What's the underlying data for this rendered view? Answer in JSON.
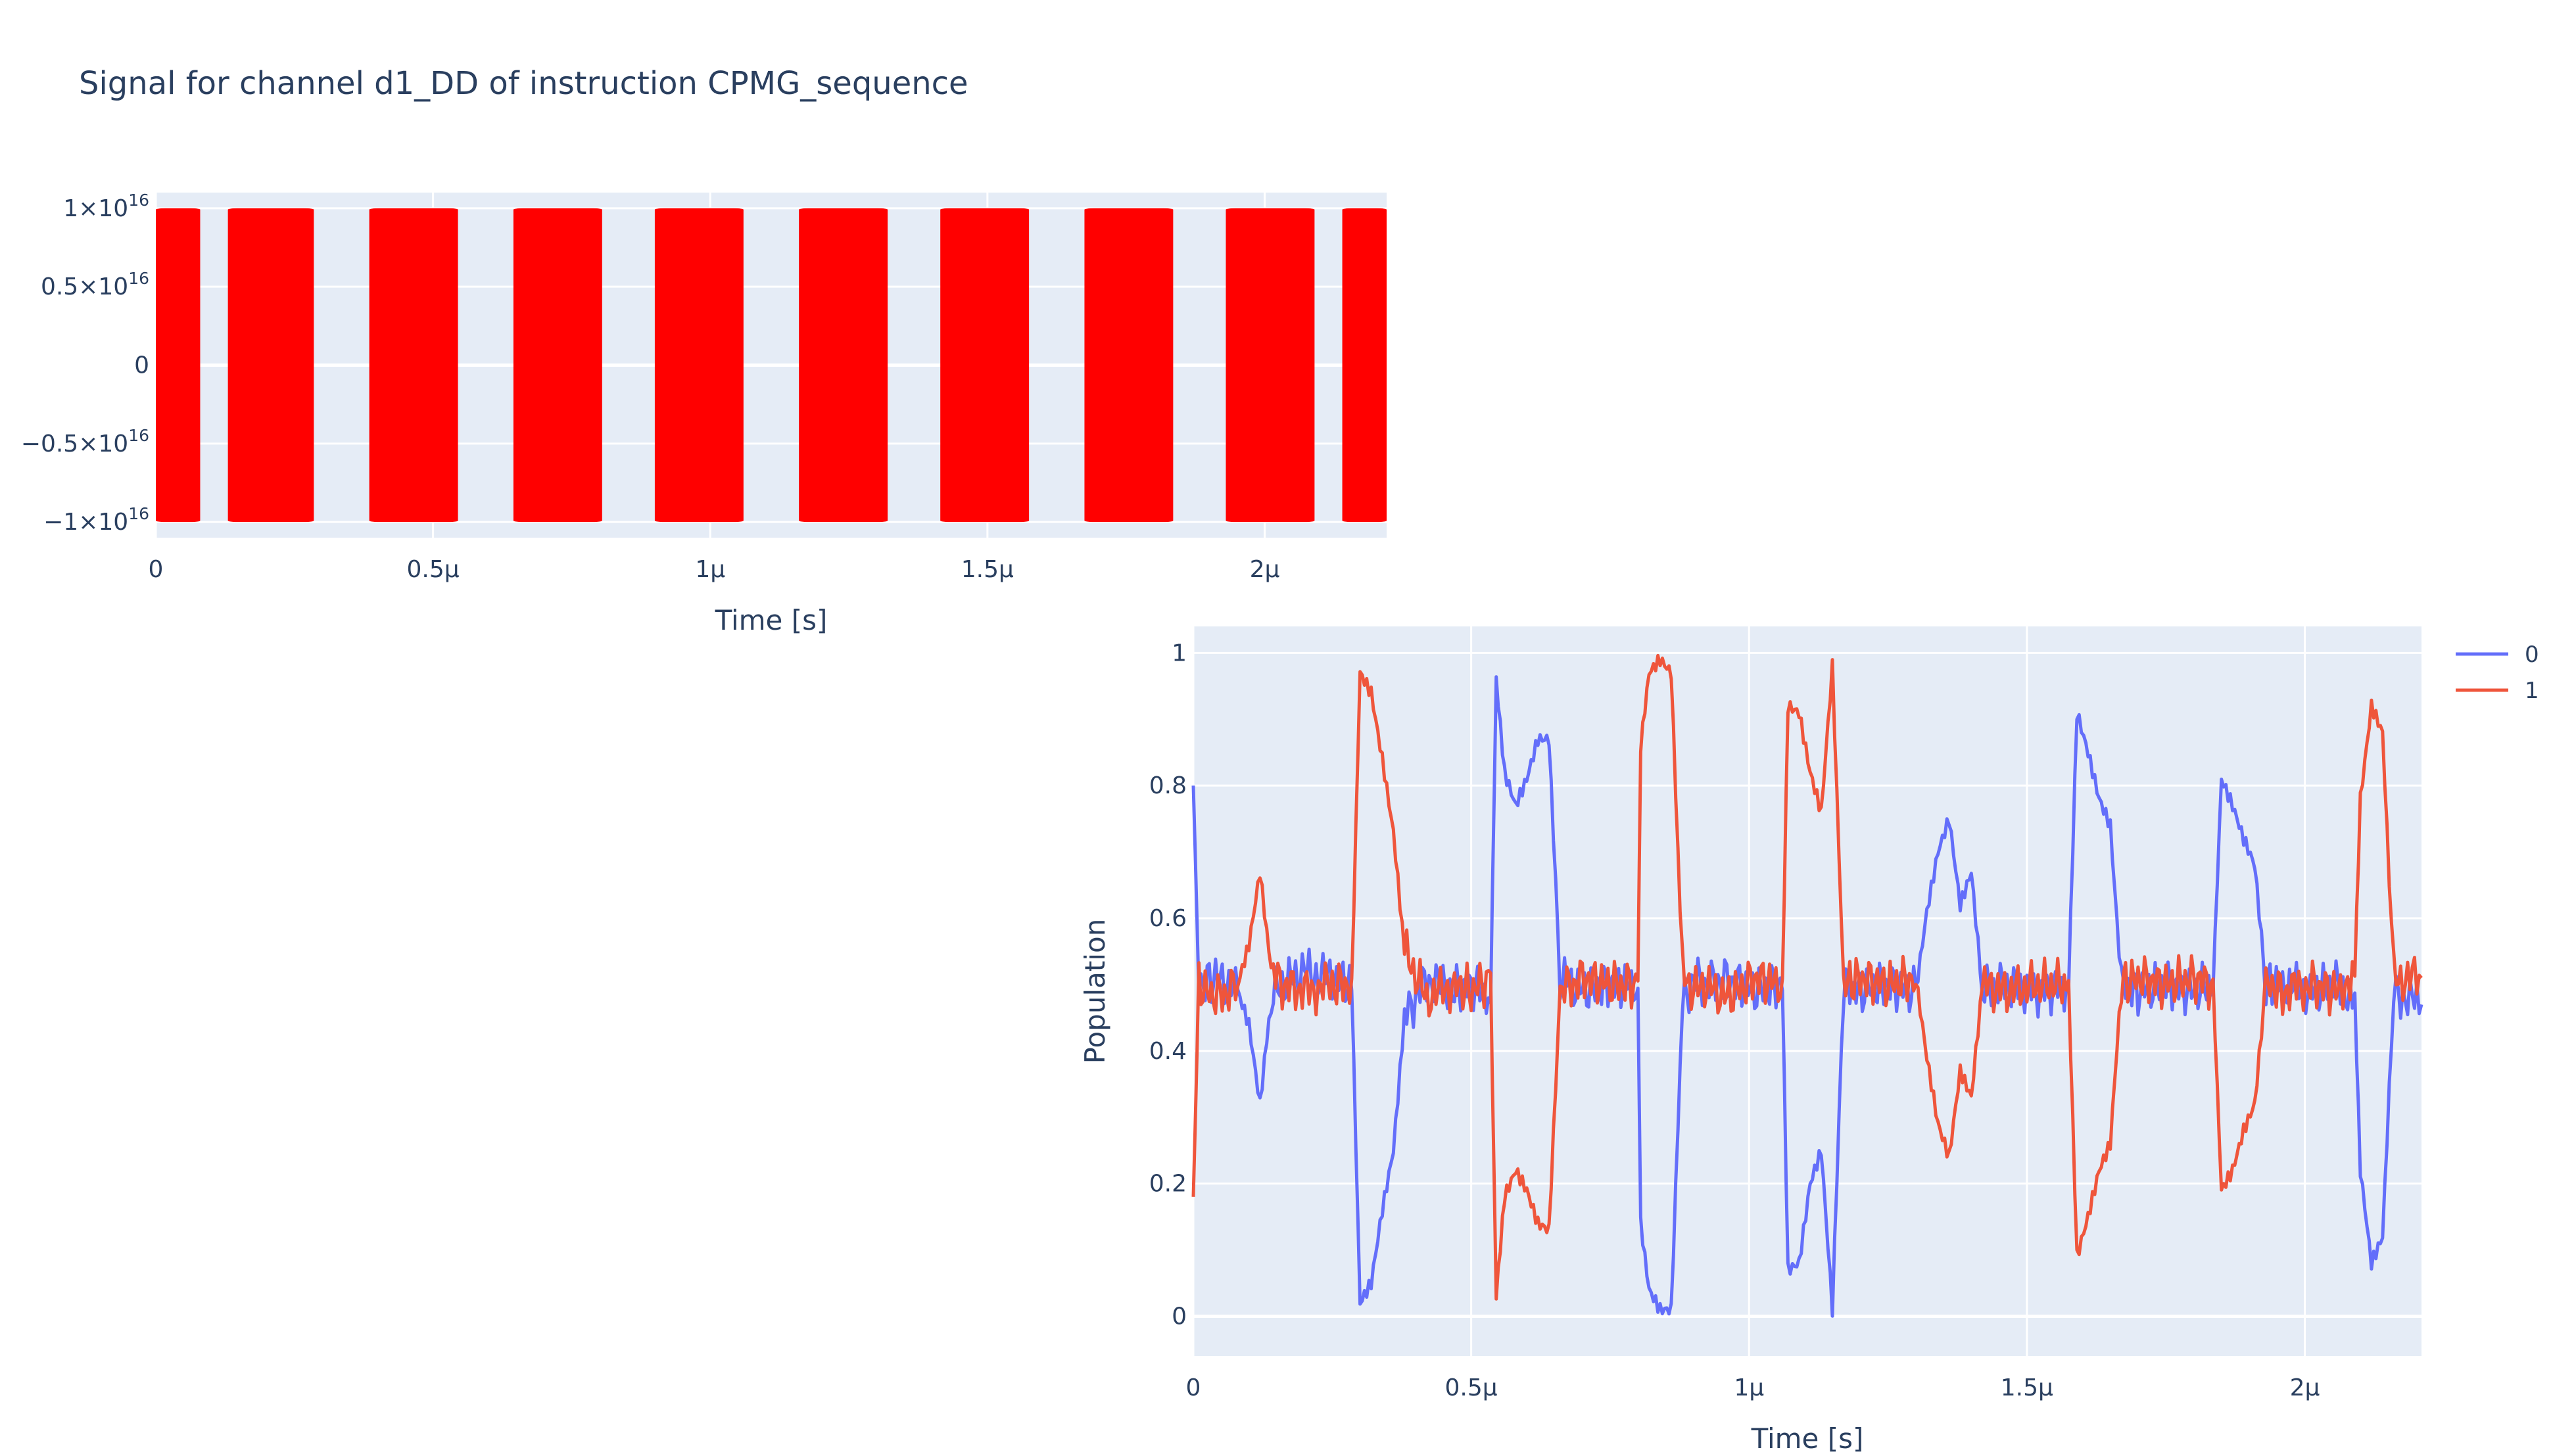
{
  "title": "Signal for channel d1_DD of instruction CPMG_sequence",
  "chart_data": [
    {
      "type": "line",
      "title": "Signal for channel d1_DD of instruction CPMG_sequence",
      "xlabel": "Time [s]",
      "ylabel": "",
      "xlim": [
        0,
        2.22e-06
      ],
      "ylim": [
        -1.1e+16,
        1.1e+16
      ],
      "x_ticks": [
        {
          "value": 0,
          "label": "0"
        },
        {
          "value": 5e-07,
          "label": "0.5μ"
        },
        {
          "value": 1e-06,
          "label": "1μ"
        },
        {
          "value": 1.5e-06,
          "label": "1.5μ"
        },
        {
          "value": 2e-06,
          "label": "2μ"
        }
      ],
      "y_ticks": [
        {
          "value": 1e+16,
          "mant": "1",
          "exp": "16"
        },
        {
          "value": 5000000000000000.0,
          "mant": "0.5",
          "exp": "16"
        },
        {
          "value": 0,
          "mant": "0",
          "exp": ""
        },
        {
          "value": -5000000000000000.0,
          "mant": "−0.5",
          "exp": "16"
        },
        {
          "value": -1e+16,
          "mant": "−1",
          "exp": "16"
        }
      ],
      "series_color": "#ff0000",
      "amplitude": 1e+16,
      "pulses_us": [
        [
          0.0,
          0.08
        ],
        [
          0.13,
          0.285
        ],
        [
          0.385,
          0.545
        ],
        [
          0.645,
          0.805
        ],
        [
          0.9,
          1.06
        ],
        [
          1.16,
          1.32
        ],
        [
          1.415,
          1.575
        ],
        [
          1.675,
          1.835
        ],
        [
          1.93,
          2.09
        ],
        [
          2.14,
          2.22
        ]
      ]
    },
    {
      "type": "line",
      "title": "",
      "xlabel": "Time [s]",
      "ylabel": "Population",
      "xlim": [
        0,
        2.21e-06
      ],
      "ylim": [
        -0.06,
        1.04
      ],
      "x_ticks": [
        {
          "value": 0,
          "label": "0"
        },
        {
          "value": 5e-07,
          "label": "0.5μ"
        },
        {
          "value": 1e-06,
          "label": "1μ"
        },
        {
          "value": 1.5e-06,
          "label": "1.5μ"
        },
        {
          "value": 2e-06,
          "label": "2μ"
        }
      ],
      "y_ticks": [
        {
          "value": 0,
          "label": "0"
        },
        {
          "value": 0.2,
          "label": "0.2"
        },
        {
          "value": 0.4,
          "label": "0.4"
        },
        {
          "value": 0.6,
          "label": "0.6"
        },
        {
          "value": 0.8,
          "label": "0.8"
        },
        {
          "value": 1,
          "label": "1"
        }
      ],
      "legend": "top-right",
      "series": [
        {
          "name": "0",
          "color": "#636efa",
          "x_us": [
            0,
            0.01,
            0.04,
            0.08,
            0.1,
            0.12,
            0.14,
            0.16,
            0.2,
            0.25,
            0.285,
            0.3,
            0.32,
            0.34,
            0.36,
            0.38,
            0.42,
            0.47,
            0.5,
            0.535,
            0.545,
            0.56,
            0.58,
            0.6,
            0.62,
            0.64,
            0.66,
            0.7,
            0.75,
            0.8,
            0.805,
            0.82,
            0.84,
            0.86,
            0.88,
            0.9,
            0.92,
            0.96,
            1.01,
            1.06,
            1.07,
            1.09,
            1.11,
            1.13,
            1.15,
            1.17,
            1.2,
            1.25,
            1.3,
            1.32,
            1.34,
            1.36,
            1.38,
            1.4,
            1.42,
            1.46,
            1.52,
            1.575,
            1.59,
            1.61,
            1.63,
            1.65,
            1.67,
            1.7,
            1.75,
            1.8,
            1.835,
            1.85,
            1.87,
            1.89,
            1.91,
            1.93,
            1.96,
            2.01,
            2.06,
            2.09,
            2.1,
            2.12,
            2.14,
            2.16,
            2.21
          ],
          "y": [
            0.8,
            0.5,
            0.51,
            0.49,
            0.44,
            0.32,
            0.48,
            0.5,
            0.52,
            0.51,
            0.5,
            0.02,
            0.05,
            0.16,
            0.25,
            0.45,
            0.51,
            0.49,
            0.5,
            0.48,
            0.96,
            0.82,
            0.77,
            0.81,
            0.87,
            0.87,
            0.51,
            0.49,
            0.5,
            0.5,
            0.14,
            0.04,
            0.01,
            0.01,
            0.47,
            0.51,
            0.5,
            0.51,
            0.49,
            0.5,
            0.07,
            0.08,
            0.2,
            0.25,
            0.01,
            0.5,
            0.49,
            0.5,
            0.49,
            0.61,
            0.7,
            0.75,
            0.62,
            0.67,
            0.49,
            0.5,
            0.49,
            0.5,
            0.91,
            0.85,
            0.78,
            0.74,
            0.5,
            0.49,
            0.5,
            0.49,
            0.5,
            0.81,
            0.77,
            0.72,
            0.68,
            0.5,
            0.5,
            0.49,
            0.5,
            0.48,
            0.22,
            0.08,
            0.12,
            0.49,
            0.47
          ]
        },
        {
          "name": "1",
          "color": "#ef553b",
          "x_us": [
            0,
            0.01,
            0.04,
            0.08,
            0.1,
            0.12,
            0.14,
            0.16,
            0.2,
            0.25,
            0.285,
            0.3,
            0.32,
            0.34,
            0.36,
            0.38,
            0.42,
            0.47,
            0.5,
            0.535,
            0.545,
            0.56,
            0.58,
            0.6,
            0.62,
            0.64,
            0.66,
            0.7,
            0.75,
            0.8,
            0.805,
            0.82,
            0.84,
            0.86,
            0.88,
            0.9,
            0.92,
            0.96,
            1.01,
            1.06,
            1.07,
            1.09,
            1.11,
            1.13,
            1.15,
            1.17,
            1.2,
            1.25,
            1.3,
            1.32,
            1.34,
            1.36,
            1.38,
            1.4,
            1.42,
            1.46,
            1.52,
            1.575,
            1.59,
            1.61,
            1.63,
            1.65,
            1.67,
            1.7,
            1.75,
            1.8,
            1.835,
            1.85,
            1.87,
            1.89,
            1.91,
            1.93,
            1.96,
            2.01,
            2.06,
            2.09,
            2.1,
            2.12,
            2.14,
            2.16,
            2.21
          ],
          "y": [
            0.18,
            0.5,
            0.48,
            0.5,
            0.56,
            0.67,
            0.52,
            0.5,
            0.49,
            0.5,
            0.5,
            0.97,
            0.94,
            0.84,
            0.73,
            0.55,
            0.48,
            0.5,
            0.49,
            0.51,
            0.03,
            0.18,
            0.22,
            0.19,
            0.14,
            0.13,
            0.49,
            0.51,
            0.5,
            0.5,
            0.86,
            0.97,
            0.99,
            0.97,
            0.52,
            0.49,
            0.5,
            0.48,
            0.51,
            0.5,
            0.92,
            0.91,
            0.82,
            0.76,
            0.98,
            0.5,
            0.51,
            0.5,
            0.51,
            0.39,
            0.29,
            0.24,
            0.37,
            0.33,
            0.5,
            0.49,
            0.5,
            0.5,
            0.09,
            0.15,
            0.22,
            0.26,
            0.5,
            0.51,
            0.5,
            0.51,
            0.5,
            0.19,
            0.22,
            0.28,
            0.32,
            0.5,
            0.49,
            0.5,
            0.49,
            0.52,
            0.78,
            0.92,
            0.88,
            0.51,
            0.51
          ]
        }
      ]
    }
  ]
}
